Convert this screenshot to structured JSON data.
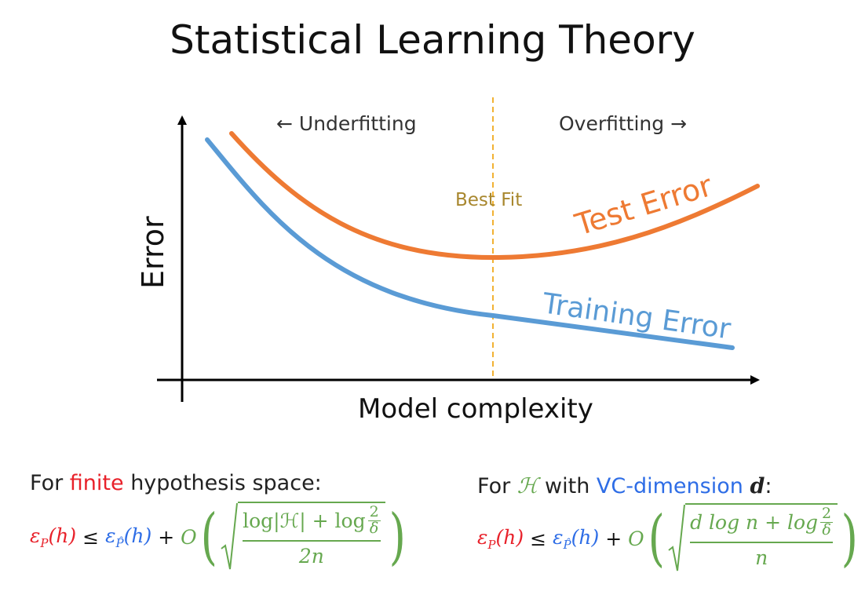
{
  "title": "Statistical Learning Theory",
  "diagram": {
    "y_axis_label": "Error",
    "x_axis_label": "Model complexity",
    "underfitting_label": "← Underfitting",
    "overfitting_label": "Overfitting →",
    "best_fit_label": "Best Fit",
    "test_curve_label": "Test Error",
    "training_curve_label": "Training Error",
    "colors": {
      "test": "#ee7a33",
      "training": "#5a9bd5",
      "best_fit_line": "#f2b233",
      "best_fit_text": "#a8872e",
      "axis": "#000000"
    }
  },
  "formulas": {
    "finite": {
      "caption_prefix": "For ",
      "caption_highlight": "finite",
      "caption_suffix": " hypothesis space:",
      "lhs_eps": "ε",
      "lhs_sub": "P",
      "lhs_arg": "(h)",
      "leq": "≤",
      "rhs_eps": "ε",
      "rhs_sub": "P̂",
      "rhs_arg": "(h)",
      "plus": "+",
      "big_o": "O",
      "numerator": "log|ℋ| + log",
      "small_num": "2",
      "small_den": "δ",
      "denominator": "2n"
    },
    "vc": {
      "caption_prefix": "For ",
      "caption_symbol": "ℋ",
      "caption_middle": " with ",
      "caption_highlight": "VC-dimension",
      "caption_var": "d",
      "caption_suffix": ":",
      "lhs_eps": "ε",
      "lhs_sub": "P",
      "lhs_arg": "(h)",
      "leq": "≤",
      "rhs_eps": "ε",
      "rhs_sub": "P̂",
      "rhs_arg": "(h)",
      "plus": "+",
      "big_o": "O",
      "numerator": "d log n + log",
      "small_num": "2",
      "small_den": "δ",
      "denominator": "n"
    }
  }
}
